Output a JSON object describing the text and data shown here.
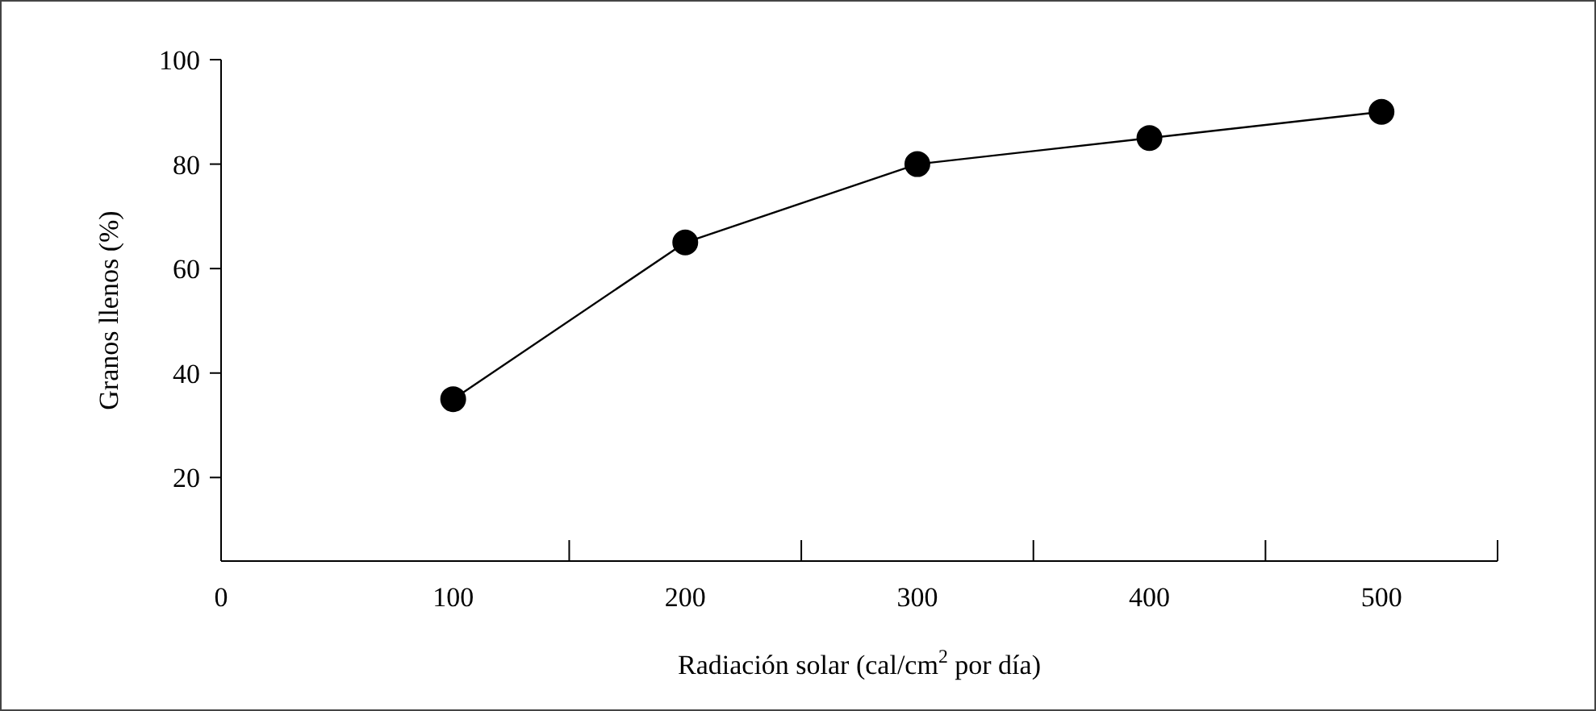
{
  "chart_data": {
    "type": "line",
    "xlabel": "Radiación solar (cal/cm$^{2}$ por día)",
    "ylabel": "Granos llenos (%)",
    "x": [
      100,
      200,
      300,
      400,
      500
    ],
    "series": [
      {
        "color": "#000000",
        "values": [
          35,
          65,
          80,
          85,
          90
        ]
      }
    ],
    "xlim": [
      0,
      550
    ],
    "xticks": [
      0,
      100,
      {
        "value": 150,
        "label": null
      },
      200,
      {
        "value": 250,
        "label": null
      },
      300,
      {
        "value": 350,
        "label": null
      },
      400,
      {
        "value": 450,
        "label": null
      },
      500,
      {
        "value": 550,
        "label": null
      }
    ],
    "ylim": [
      4,
      100
    ],
    "yticks": [
      20,
      40,
      60,
      80,
      100
    ],
    "marker": "circle",
    "line_style": "solid",
    "grid": false,
    "legend": false
  }
}
